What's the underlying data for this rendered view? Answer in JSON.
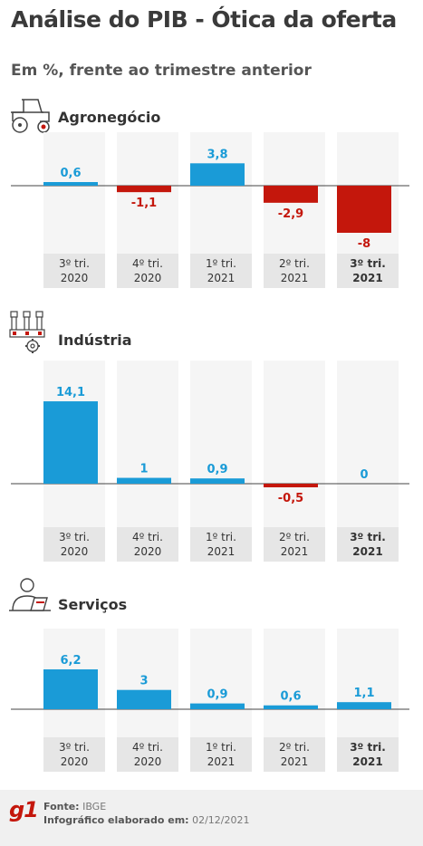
{
  "header": {
    "title": "Análise do PIB - Ótica da oferta",
    "subtitle": "Em %, frente ao trimestre anterior"
  },
  "colors": {
    "positive": "#1a9bd7",
    "negative": "#c4170c",
    "column_bg": "#f5f5f5",
    "label_bg": "#e6e6e6"
  },
  "icons": [
    "tractor-icon",
    "factory-icon",
    "person-laptop-icon"
  ],
  "chart_data": [
    {
      "type": "bar",
      "title": "Agronegócio",
      "categories": [
        "3º tri. 2020",
        "4º tri. 2020",
        "1º tri. 2021",
        "2º tri. 2021",
        "3º tri. 2021"
      ],
      "values": [
        0.6,
        -1.1,
        3.8,
        -2.9,
        -8
      ],
      "value_labels": [
        "0,6",
        "-1,1",
        "3,8",
        "-2,9",
        "-8"
      ],
      "highlight_last": true
    },
    {
      "type": "bar",
      "title": "Indústria",
      "categories": [
        "3º tri. 2020",
        "4º tri. 2020",
        "1º tri. 2021",
        "2º tri. 2021",
        "3º tri. 2021"
      ],
      "values": [
        14.1,
        1,
        0.9,
        -0.5,
        0
      ],
      "value_labels": [
        "14,1",
        "1",
        "0,9",
        "-0,5",
        "0"
      ],
      "highlight_last": true
    },
    {
      "type": "bar",
      "title": "Serviços",
      "categories": [
        "3º tri. 2020",
        "4º tri. 2020",
        "1º tri. 2021",
        "2º tri. 2021",
        "3º tri. 2021"
      ],
      "values": [
        6.2,
        3,
        0.9,
        0.6,
        1.1
      ],
      "value_labels": [
        "6,2",
        "3",
        "0,9",
        "0,6",
        "1,1"
      ],
      "highlight_last": true
    }
  ],
  "footer": {
    "logo": "g1",
    "source_label": "Fonte:",
    "source_value": "IBGE",
    "made_label": "Infográfico elaborado em:",
    "made_value": "02/12/2021"
  }
}
